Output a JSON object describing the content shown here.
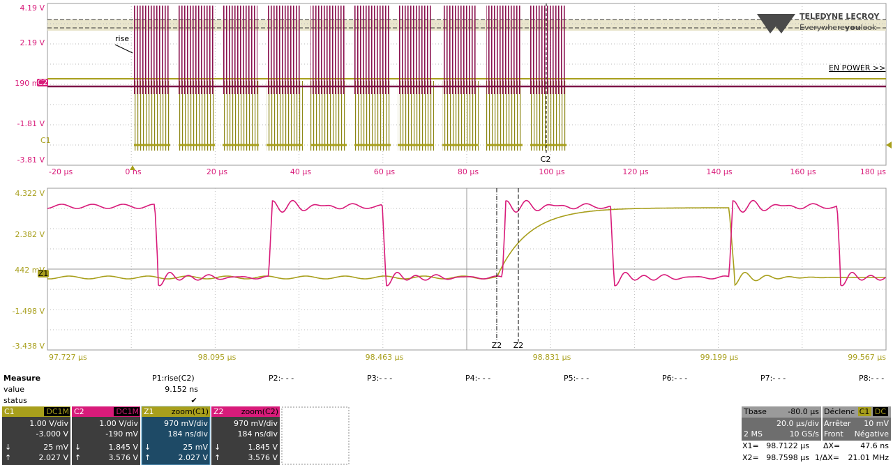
{
  "top_panel": {
    "y_labels": [
      "4.19 V",
      "2.19 V",
      "190 mV",
      "-1.81 V",
      "-3.81 V"
    ],
    "x_labels": [
      "-20 µs",
      "0 ns",
      "20 µs",
      "40 µs",
      "60 µs",
      "80 µs",
      "100 µs",
      "120 µs",
      "140 µs",
      "160 µs",
      "180 µs"
    ],
    "rise_label": "rise",
    "c1_marker": "C1",
    "c2_marker": "C2",
    "cursor_label": "C2",
    "brand": "TELEDYNE LECROY",
    "tagline_start": "Everywhere",
    "tagline_bold": "you",
    "tagline_end": "look",
    "annotation": "EN POWER >>"
  },
  "bottom_panel": {
    "y_labels": [
      "4.322 V",
      "2.382 V",
      "442 mV",
      "-1.498 V",
      "-3.438 V"
    ],
    "x_labels": [
      "97.727 µs",
      "98.095 µs",
      "98.463 µs",
      "98.831 µs",
      "99.199 µs",
      "99.567 µs"
    ],
    "z1_marker": "Z1",
    "cursor_labels": [
      "Z2",
      "Z2"
    ]
  },
  "measure": {
    "headers": [
      "Measure",
      "P1:rise(C2)",
      "P2:- - -",
      "P3:- - -",
      "P4:- - -",
      "P5:- - -",
      "P6:- - -",
      "P7:- - -",
      "P8:- - -"
    ],
    "value_label": "value",
    "value": "9.152 ns",
    "status_label": "status",
    "status": "✔"
  },
  "channels": [
    {
      "name": "C1",
      "tag": "DC1M",
      "scale": "1.00 V/div",
      "offset": "-3.000 V",
      "arrow_low": "↓",
      "low": "25 mV",
      "arrow_high": "↑",
      "high": "2.027 V"
    },
    {
      "name": "C2",
      "tag": "DC1M",
      "scale": "1.00 V/div",
      "offset": "-190 mV",
      "arrow_low": "↓",
      "low": "1.845 V",
      "arrow_high": "↑",
      "high": "3.576 V"
    },
    {
      "name": "Z1",
      "tag": "zoom(C1)",
      "scale": "970 mV/div",
      "offset": "184 ns/div",
      "arrow_low": "↓",
      "low": "25 mV",
      "arrow_high": "↑",
      "high": "2.027 V"
    },
    {
      "name": "Z2",
      "tag": "zoom(C2)",
      "scale": "970 mV/div",
      "offset": "184 ns/div",
      "arrow_low": "↓",
      "low": "1.845 V",
      "arrow_high": "↑",
      "high": "3.576 V"
    }
  ],
  "timebase": {
    "title": "Tbase",
    "delay": "-80.0 µs",
    "scale": "20.0 µs/div",
    "points": "2 MS",
    "rate": "10 GS/s"
  },
  "trigger": {
    "title": "Déclenc",
    "source": "C1",
    "coupling": "DC",
    "mode": "Arrêter",
    "level": "10 mV",
    "type": "Front",
    "slope": "Négative"
  },
  "cursors": {
    "x1_label": "X1=",
    "x1": "98.7122 µs",
    "dx_label": "ΔX=",
    "dx": "47.6 ns",
    "x2_label": "X2=",
    "x2": "98.7598 µs",
    "inv_label": "1/ΔX=",
    "inv": "21.01 MHz"
  }
}
